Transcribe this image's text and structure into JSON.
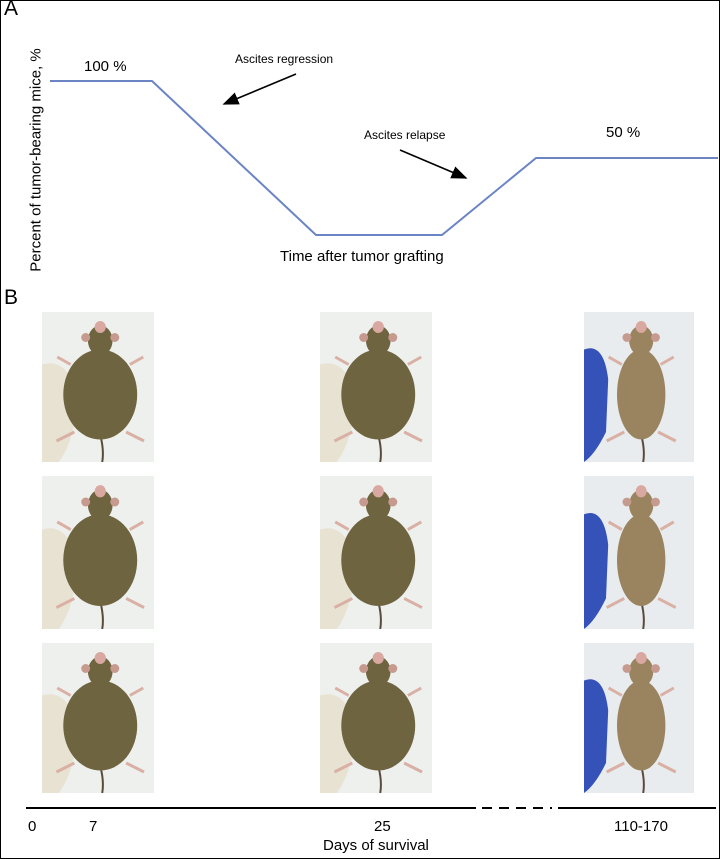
{
  "panel_a": {
    "label": "A",
    "y_axis_label": "Percent of tumor-bearing mice, %",
    "x_axis_label": "Time after tumor grafting",
    "start_value_label": "100 %",
    "end_value_label": "50 %",
    "annotation_regression": "Ascites regression",
    "annotation_relapse": "Ascites relapse"
  },
  "panel_b": {
    "label": "B",
    "x_axis_title": "Days of survival",
    "ticks": [
      "0",
      "7",
      "25",
      "110-170"
    ],
    "columns": [
      {
        "day": "7",
        "photos": [
          "mouse with ascites",
          "mouse with ascites",
          "mouse with ascites"
        ]
      },
      {
        "day": "25",
        "photos": [
          "mouse with ascites",
          "mouse with ascites",
          "mouse with ascites"
        ]
      },
      {
        "day": "110-170",
        "photos": [
          "cured mouse",
          "cured mouse",
          "cured mouse"
        ]
      }
    ]
  },
  "chart_data": {
    "type": "line",
    "title": "",
    "xlabel": "Time after tumor grafting",
    "ylabel": "Percent of tumor-bearing mice, %",
    "x": [
      "start",
      "regression onset",
      "regression complete",
      "relapse onset",
      "relapse complete",
      "end"
    ],
    "series": [
      {
        "name": "tumor-bearing mice",
        "values": [
          100,
          100,
          0,
          0,
          50,
          50
        ]
      }
    ],
    "ylim": [
      0,
      100
    ],
    "point_labels": [
      "100 %",
      "",
      "",
      "",
      "",
      "50 %"
    ],
    "annotations": [
      "Ascites regression",
      "Ascites relapse"
    ],
    "grid": false,
    "color": "#6b84c4"
  }
}
